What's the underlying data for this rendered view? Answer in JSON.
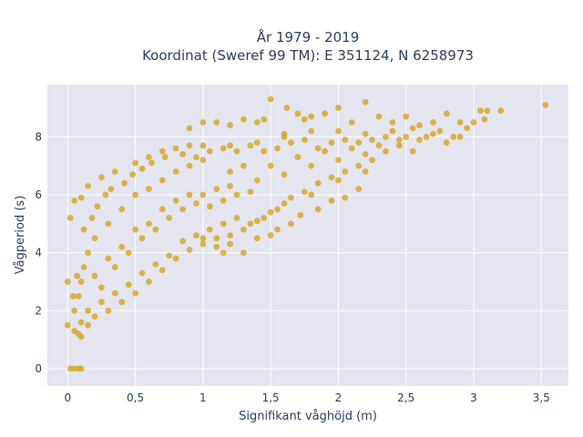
{
  "chart_data": {
    "type": "scatter",
    "title_lines": [
      "År 1979 - 2019",
      "Koordinat (Sweref 99 TM): E 351124, N 6258973"
    ],
    "xlabel": "Signifikant våghöjd (m)",
    "ylabel": "Vågperiod (s)",
    "xlim": [
      -0.15,
      3.7
    ],
    "ylim": [
      -0.6,
      9.8
    ],
    "x_ticks": [
      0,
      0.5,
      1,
      1.5,
      2,
      2.5,
      3,
      3.5
    ],
    "x_tick_labels": [
      "0",
      "0,5",
      "1",
      "1,5",
      "2",
      "2,5",
      "3",
      "3,5"
    ],
    "y_ticks": [
      0,
      2,
      4,
      6,
      8
    ],
    "y_tick_labels": [
      "0",
      "2",
      "4",
      "6",
      "8"
    ],
    "grid": true,
    "colors": {
      "marker": "#d4a420",
      "plot_bg": "#e5e5f0",
      "grid": "#ffffff",
      "text": "#2a3f5f"
    },
    "series": [
      {
        "points": [
          [
            0.02,
            0.0
          ],
          [
            0.05,
            0.0
          ],
          [
            0.08,
            0.0
          ],
          [
            0.1,
            0.0
          ],
          [
            0.0,
            1.5
          ],
          [
            0.05,
            1.3
          ],
          [
            0.1,
            1.1
          ],
          [
            0.15,
            1.5
          ],
          [
            0.2,
            1.8
          ],
          [
            0.3,
            2.0
          ],
          [
            0.4,
            2.3
          ],
          [
            0.5,
            2.6
          ],
          [
            0.6,
            3.0
          ],
          [
            0.7,
            3.4
          ],
          [
            0.8,
            3.8
          ],
          [
            0.9,
            4.1
          ],
          [
            1.0,
            4.3
          ],
          [
            1.1,
            4.5
          ],
          [
            1.2,
            4.6
          ],
          [
            1.3,
            4.8
          ],
          [
            1.4,
            5.1
          ],
          [
            1.5,
            5.4
          ],
          [
            1.6,
            5.7
          ],
          [
            1.8,
            6.0
          ],
          [
            2.0,
            6.5
          ],
          [
            2.2,
            6.8
          ],
          [
            0.0,
            3.0
          ],
          [
            0.02,
            5.2
          ],
          [
            0.05,
            5.8
          ],
          [
            0.1,
            5.9
          ],
          [
            0.15,
            6.3
          ],
          [
            0.25,
            6.6
          ],
          [
            0.35,
            6.8
          ],
          [
            0.5,
            7.1
          ],
          [
            0.6,
            7.3
          ],
          [
            0.7,
            7.5
          ],
          [
            0.8,
            7.6
          ],
          [
            0.9,
            7.7
          ],
          [
            1.0,
            7.7
          ],
          [
            1.2,
            7.7
          ],
          [
            1.4,
            7.8
          ],
          [
            1.6,
            8.1
          ],
          [
            1.8,
            8.2
          ],
          [
            2.0,
            8.2
          ],
          [
            2.2,
            8.1
          ],
          [
            2.4,
            8.2
          ],
          [
            0.1,
            3.0
          ],
          [
            0.15,
            4.0
          ],
          [
            0.2,
            4.5
          ],
          [
            0.3,
            5.0
          ],
          [
            0.4,
            5.5
          ],
          [
            0.5,
            6.0
          ],
          [
            0.6,
            6.2
          ],
          [
            0.7,
            6.5
          ],
          [
            0.8,
            6.8
          ],
          [
            0.9,
            7.0
          ],
          [
            1.0,
            7.2
          ],
          [
            1.2,
            6.8
          ],
          [
            1.3,
            7.0
          ],
          [
            1.5,
            7.0
          ],
          [
            1.7,
            7.3
          ],
          [
            1.9,
            7.5
          ],
          [
            2.1,
            7.6
          ],
          [
            2.3,
            7.7
          ],
          [
            0.2,
            3.2
          ],
          [
            0.3,
            3.8
          ],
          [
            0.4,
            4.2
          ],
          [
            0.5,
            4.8
          ],
          [
            0.6,
            5.0
          ],
          [
            0.7,
            5.5
          ],
          [
            0.8,
            5.8
          ],
          [
            0.9,
            6.0
          ],
          [
            1.0,
            6.0
          ],
          [
            1.1,
            6.2
          ],
          [
            1.2,
            6.3
          ],
          [
            1.4,
            6.5
          ],
          [
            1.6,
            6.7
          ],
          [
            1.8,
            7.0
          ],
          [
            2.0,
            7.2
          ],
          [
            2.2,
            7.4
          ],
          [
            0.05,
            2.0
          ],
          [
            0.08,
            2.5
          ],
          [
            0.12,
            3.5
          ],
          [
            0.25,
            2.8
          ],
          [
            0.35,
            3.5
          ],
          [
            0.45,
            4.0
          ],
          [
            0.55,
            4.5
          ],
          [
            0.65,
            4.8
          ],
          [
            0.75,
            5.2
          ],
          [
            0.85,
            5.5
          ],
          [
            0.95,
            5.7
          ],
          [
            1.05,
            5.6
          ],
          [
            1.15,
            5.8
          ],
          [
            1.25,
            6.0
          ],
          [
            1.35,
            6.1
          ],
          [
            1.0,
            8.5
          ],
          [
            1.1,
            8.5
          ],
          [
            1.3,
            8.6
          ],
          [
            1.45,
            8.6
          ],
          [
            1.5,
            9.3
          ],
          [
            1.62,
            9.0
          ],
          [
            1.7,
            8.8
          ],
          [
            1.8,
            8.7
          ],
          [
            1.9,
            8.8
          ],
          [
            2.0,
            9.0
          ],
          [
            2.2,
            9.2
          ],
          [
            2.3,
            8.7
          ],
          [
            2.5,
            8.7
          ],
          [
            2.6,
            8.4
          ],
          [
            2.7,
            8.5
          ],
          [
            2.8,
            8.8
          ],
          [
            2.9,
            8.5
          ],
          [
            3.0,
            8.5
          ],
          [
            3.05,
            8.9
          ],
          [
            3.1,
            8.9
          ],
          [
            3.2,
            8.9
          ],
          [
            3.53,
            9.1
          ],
          [
            0.9,
            8.3
          ],
          [
            1.2,
            8.4
          ],
          [
            1.4,
            8.5
          ],
          [
            1.6,
            8.0
          ],
          [
            1.75,
            8.6
          ],
          [
            2.1,
            8.5
          ],
          [
            2.4,
            8.5
          ],
          [
            2.55,
            8.3
          ],
          [
            2.65,
            8.0
          ],
          [
            2.75,
            8.2
          ],
          [
            2.85,
            8.0
          ],
          [
            2.95,
            8.3
          ],
          [
            3.08,
            8.6
          ],
          [
            1.0,
            4.5
          ],
          [
            1.1,
            4.2
          ],
          [
            1.15,
            4.0
          ],
          [
            1.2,
            4.3
          ],
          [
            1.3,
            4.0
          ],
          [
            1.4,
            4.5
          ],
          [
            1.5,
            4.6
          ],
          [
            1.55,
            4.8
          ],
          [
            1.65,
            5.0
          ],
          [
            1.72,
            5.3
          ],
          [
            1.85,
            5.5
          ],
          [
            1.95,
            5.8
          ],
          [
            2.05,
            5.9
          ],
          [
            2.15,
            6.2
          ],
          [
            0.04,
            2.5
          ],
          [
            0.07,
            3.2
          ],
          [
            0.12,
            4.8
          ],
          [
            0.18,
            5.2
          ],
          [
            0.22,
            5.6
          ],
          [
            0.28,
            6.0
          ],
          [
            0.32,
            6.2
          ],
          [
            0.42,
            6.4
          ],
          [
            0.48,
            6.7
          ],
          [
            0.55,
            6.9
          ],
          [
            0.62,
            7.1
          ],
          [
            0.72,
            7.3
          ],
          [
            0.85,
            7.4
          ],
          [
            0.95,
            7.3
          ],
          [
            1.05,
            7.5
          ],
          [
            1.15,
            7.6
          ],
          [
            1.25,
            7.5
          ],
          [
            1.35,
            7.7
          ],
          [
            1.45,
            7.5
          ],
          [
            1.55,
            7.6
          ],
          [
            1.65,
            7.8
          ],
          [
            1.75,
            7.9
          ],
          [
            1.85,
            7.6
          ],
          [
            1.95,
            7.8
          ],
          [
            2.05,
            7.9
          ],
          [
            2.15,
            7.8
          ],
          [
            2.25,
            7.9
          ],
          [
            2.35,
            8.0
          ],
          [
            2.45,
            7.9
          ],
          [
            2.5,
            8.0
          ],
          [
            2.6,
            7.9
          ],
          [
            2.7,
            8.1
          ],
          [
            2.8,
            7.8
          ],
          [
            2.9,
            8.0
          ],
          [
            2.55,
            7.5
          ],
          [
            2.25,
            7.2
          ],
          [
            2.35,
            7.5
          ],
          [
            2.45,
            7.7
          ],
          [
            2.15,
            7.0
          ],
          [
            2.05,
            6.8
          ],
          [
            1.95,
            6.6
          ],
          [
            1.85,
            6.4
          ],
          [
            1.75,
            6.1
          ],
          [
            1.65,
            5.9
          ],
          [
            1.55,
            5.5
          ],
          [
            1.45,
            5.2
          ],
          [
            1.35,
            5.0
          ],
          [
            1.25,
            5.2
          ],
          [
            1.15,
            5.0
          ],
          [
            1.05,
            4.8
          ],
          [
            0.95,
            4.6
          ],
          [
            0.85,
            4.4
          ],
          [
            0.75,
            3.9
          ],
          [
            0.65,
            3.6
          ],
          [
            0.55,
            3.3
          ],
          [
            0.45,
            2.9
          ],
          [
            0.35,
            2.6
          ],
          [
            0.25,
            2.3
          ],
          [
            0.15,
            2.0
          ],
          [
            0.1,
            1.6
          ],
          [
            0.08,
            1.2
          ]
        ]
      }
    ]
  }
}
